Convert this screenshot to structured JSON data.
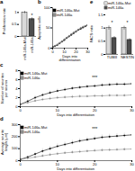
{
  "chart_data": [
    {
      "type": "bar",
      "title": "a",
      "y_label": "Proliferation rate",
      "categories": [
        "miR-146a-Mut",
        "miR-146a"
      ],
      "values": [
        1,
        0.72
      ],
      "errors": [
        0.05,
        0.06
      ],
      "colors": [
        "#d9d9d9",
        "#4d4d4d"
      ],
      "ylim": [
        0,
        1.2
      ],
      "yticks": [
        0,
        0.5,
        1
      ],
      "annotations": [
        {
          "text": "*",
          "x": "miR-146a",
          "y": 0.86
        }
      ]
    },
    {
      "type": "line",
      "title": "b",
      "x_label": "Days into differentiation",
      "y_label": "Apoptotic cells",
      "x": [
        0,
        2,
        4,
        6,
        8,
        10,
        12,
        14,
        16,
        18,
        20,
        22,
        24,
        26,
        28,
        30
      ],
      "series": [
        {
          "name": "miR-146a-Mut",
          "color": "#000000",
          "marker": "circle",
          "values": [
            3,
            5,
            8,
            12,
            16,
            20,
            25,
            29,
            33,
            37,
            41,
            45,
            48,
            51,
            54,
            57
          ]
        },
        {
          "name": "miR-146a",
          "color": "#8c8c8c",
          "marker": "circle",
          "values": [
            3,
            6,
            9,
            13,
            17,
            22,
            26,
            30,
            35,
            39,
            42,
            46,
            50,
            53,
            55,
            58
          ]
        }
      ],
      "xlim": [
        0,
        30
      ],
      "xticks": [
        0,
        10,
        20,
        30
      ],
      "ylim": [
        0,
        100
      ],
      "yticks": [
        0,
        50,
        100
      ],
      "legend": "top-left"
    },
    {
      "type": "line",
      "title": "c",
      "x_label": "Days into differentiation",
      "y_label": "Number of neurites per neuron",
      "x": [
        0,
        2,
        4,
        6,
        8,
        10,
        12,
        14,
        16,
        18,
        20,
        22,
        24,
        26,
        28,
        30
      ],
      "series": [
        {
          "name": "miR-146a-Mut",
          "color": "#000000",
          "marker": "circle",
          "values": [
            0.5,
            1.2,
            2,
            2.6,
            3.1,
            3.5,
            3.8,
            4.1,
            4.3,
            4.5,
            4.6,
            4.8,
            4.9,
            5,
            5,
            5.1
          ],
          "errors": [
            0.2,
            0.3,
            0.4,
            0.4,
            0.4,
            0.4,
            0.4,
            0.4,
            0.4,
            0.4,
            0.4,
            0.4,
            0.4,
            0.4,
            0.4,
            0.4
          ]
        },
        {
          "name": "miR-146a",
          "color": "#8c8c8c",
          "marker": "circle",
          "values": [
            0.5,
            0.9,
            1.3,
            1.6,
            1.8,
            2,
            2.1,
            2.2,
            2.3,
            2.3,
            2.4,
            2.4,
            2.5,
            2.5,
            2.5,
            2.6
          ],
          "errors": [
            0.2,
            0.2,
            0.3,
            0.3,
            0.3,
            0.3,
            0.3,
            0.3,
            0.3,
            0.3,
            0.3,
            0.3,
            0.3,
            0.3,
            0.3,
            0.3
          ]
        }
      ],
      "xlim": [
        0,
        30
      ],
      "xticks": [
        0,
        10,
        20,
        30
      ],
      "ylim": [
        0,
        8
      ],
      "yticks": [
        0,
        2,
        4,
        6,
        8
      ],
      "legend": "top-left",
      "annotations": [
        {
          "text": "***",
          "x": 20,
          "y": 6.5
        }
      ]
    },
    {
      "type": "line",
      "title": "d",
      "x_label": "Days into differentiation",
      "y_label": "Average neurite length (μm)",
      "x": [
        0,
        2,
        4,
        6,
        8,
        10,
        12,
        14,
        16,
        18,
        20,
        22,
        24,
        26,
        28,
        30
      ],
      "series": [
        {
          "name": "miR-146a-Mut",
          "color": "#000000",
          "marker": "circle",
          "values": [
            10,
            30,
            55,
            80,
            100,
            120,
            135,
            150,
            165,
            175,
            185,
            195,
            200,
            205,
            210,
            215
          ],
          "errors": [
            5,
            10,
            15,
            20,
            20,
            20,
            20,
            20,
            20,
            20,
            20,
            20,
            20,
            20,
            20,
            20
          ]
        },
        {
          "name": "miR-146a",
          "color": "#8c8c8c",
          "marker": "circle",
          "values": [
            10,
            20,
            30,
            40,
            50,
            58,
            65,
            70,
            75,
            80,
            84,
            88,
            90,
            92,
            95,
            97
          ],
          "errors": [
            5,
            8,
            10,
            12,
            12,
            12,
            12,
            12,
            12,
            12,
            12,
            12,
            12,
            12,
            12,
            12
          ]
        }
      ],
      "xlim": [
        0,
        30
      ],
      "xticks": [
        0,
        10,
        20,
        30
      ],
      "ylim": [
        0,
        300
      ],
      "yticks": [
        0,
        100,
        200,
        300
      ],
      "legend": "top-left",
      "annotations": [
        {
          "text": "***",
          "x": 20,
          "y": 260
        }
      ]
    },
    {
      "type": "bar",
      "title": "e",
      "y_label": "FACS ratio",
      "categories": [
        "TUBIII",
        "NESTIN"
      ],
      "series": [
        {
          "name": "miR-146a-Mut",
          "color": "#d9d9d9",
          "values": [
            1,
            1
          ],
          "errors": [
            0.08,
            0.07
          ]
        },
        {
          "name": "miR-146a",
          "color": "#4d4d4d",
          "values": [
            0.62,
            0.55
          ],
          "errors": [
            0.06,
            0.05
          ]
        }
      ],
      "ylim": [
        0,
        1.5
      ],
      "yticks": [
        0,
        0.5,
        1,
        1.5
      ],
      "legend": "top",
      "annotations": [
        {
          "text": "*",
          "x": "TUBIII",
          "y": 1.2
        },
        {
          "text": "*",
          "x": "NESTIN",
          "y": 1.2
        }
      ]
    }
  ]
}
